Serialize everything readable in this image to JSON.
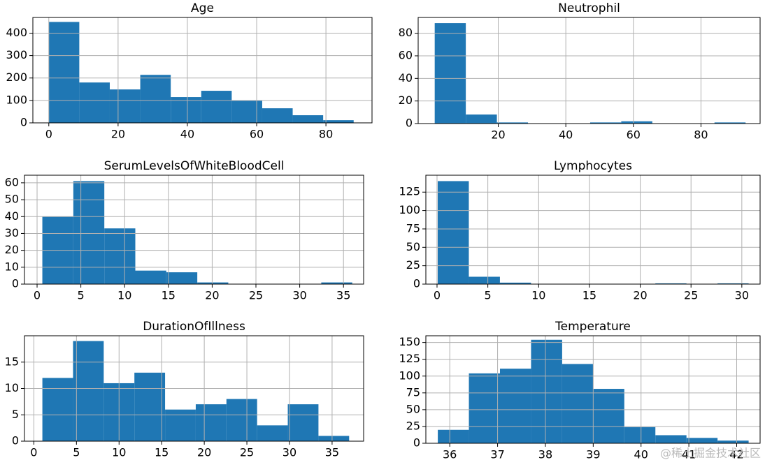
{
  "chart_data": [
    {
      "type": "histogram",
      "title": "Age",
      "color": "#1f77b4",
      "grid": true,
      "bins": [
        0,
        8.8,
        17.6,
        26.4,
        35.2,
        44,
        52.8,
        61.6,
        70.4,
        79.2,
        88
      ],
      "values": [
        450,
        180,
        149,
        214,
        115,
        143,
        99,
        65,
        34,
        12
      ],
      "xlim": [
        -4.6,
        93.3
      ],
      "xticks": [
        0,
        20,
        40,
        60,
        80
      ],
      "ylim": [
        0,
        470
      ],
      "yticks": [
        0,
        100,
        200,
        300,
        400
      ]
    },
    {
      "type": "histogram",
      "title": "Neutrophil",
      "color": "#1f77b4",
      "grid": true,
      "bins": [
        1.2,
        10.4,
        19.6,
        28.8,
        38,
        47.2,
        56.4,
        65.6,
        74.8,
        84,
        93.2
      ],
      "values": [
        89,
        8,
        1,
        0,
        0,
        1,
        2,
        0,
        0,
        1
      ],
      "xlim": [
        -3.7,
        97.5
      ],
      "xticks": [
        20,
        40,
        60,
        80
      ],
      "ylim": [
        0,
        94
      ],
      "yticks": [
        0,
        20,
        40,
        60,
        80
      ]
    },
    {
      "type": "histogram",
      "title": "SerumLevelsOfWhiteBloodCell",
      "color": "#1f77b4",
      "grid": true,
      "bins": [
        0.6,
        4.14,
        7.68,
        11.22,
        14.76,
        18.3,
        21.84,
        25.38,
        28.92,
        32.46,
        36
      ],
      "values": [
        40,
        61,
        33,
        8,
        7,
        1,
        0,
        0,
        0,
        1
      ],
      "xlim": [
        -1.44,
        37.3
      ],
      "xticks": [
        0,
        5,
        10,
        15,
        20,
        25,
        30,
        35
      ],
      "ylim": [
        0,
        64.5
      ],
      "yticks": [
        0,
        10,
        20,
        30,
        40,
        50,
        60
      ]
    },
    {
      "type": "histogram",
      "title": "Lymphocytes",
      "color": "#1f77b4",
      "grid": true,
      "bins": [
        0.07,
        3.13,
        6.19,
        9.25,
        12.31,
        15.37,
        18.43,
        21.49,
        24.55,
        27.61,
        30.67
      ],
      "values": [
        140,
        10,
        2,
        0,
        0,
        0,
        0,
        1,
        0,
        1
      ],
      "xlim": [
        -1.1,
        31.8
      ],
      "xticks": [
        0,
        5,
        10,
        15,
        20,
        25,
        30
      ],
      "ylim": [
        0,
        148
      ],
      "yticks": [
        0,
        25,
        50,
        75,
        100,
        125
      ]
    },
    {
      "type": "histogram",
      "title": "DurationOfIllness",
      "color": "#1f77b4",
      "grid": true,
      "bins": [
        1,
        4.6,
        8.2,
        11.8,
        15.4,
        19,
        22.6,
        26.2,
        29.8,
        33.4,
        37
      ],
      "values": [
        12,
        19,
        11,
        13,
        6,
        7,
        8,
        3,
        7,
        1
      ],
      "xlim": [
        -1.1,
        38.7
      ],
      "xticks": [
        0,
        5,
        10,
        15,
        20,
        25,
        30,
        35
      ],
      "ylim": [
        0,
        20
      ],
      "yticks": [
        0,
        5,
        10,
        15
      ]
    },
    {
      "type": "histogram",
      "title": "Temperature",
      "color": "#1f77b4",
      "grid": true,
      "bins": [
        35.75,
        36.4,
        37.05,
        37.7,
        38.35,
        39,
        39.65,
        40.3,
        40.95,
        41.6,
        42.25
      ],
      "values": [
        20,
        104,
        111,
        154,
        118,
        81,
        24,
        12,
        8,
        4
      ],
      "xlim": [
        35.5,
        42.49
      ],
      "xticks": [
        36,
        37,
        38,
        39,
        40,
        41,
        42
      ],
      "ylim": [
        0,
        160
      ],
      "yticks": [
        0,
        25,
        50,
        75,
        100,
        125,
        150
      ]
    }
  ],
  "watermark": "@稀土掘金技术社区"
}
